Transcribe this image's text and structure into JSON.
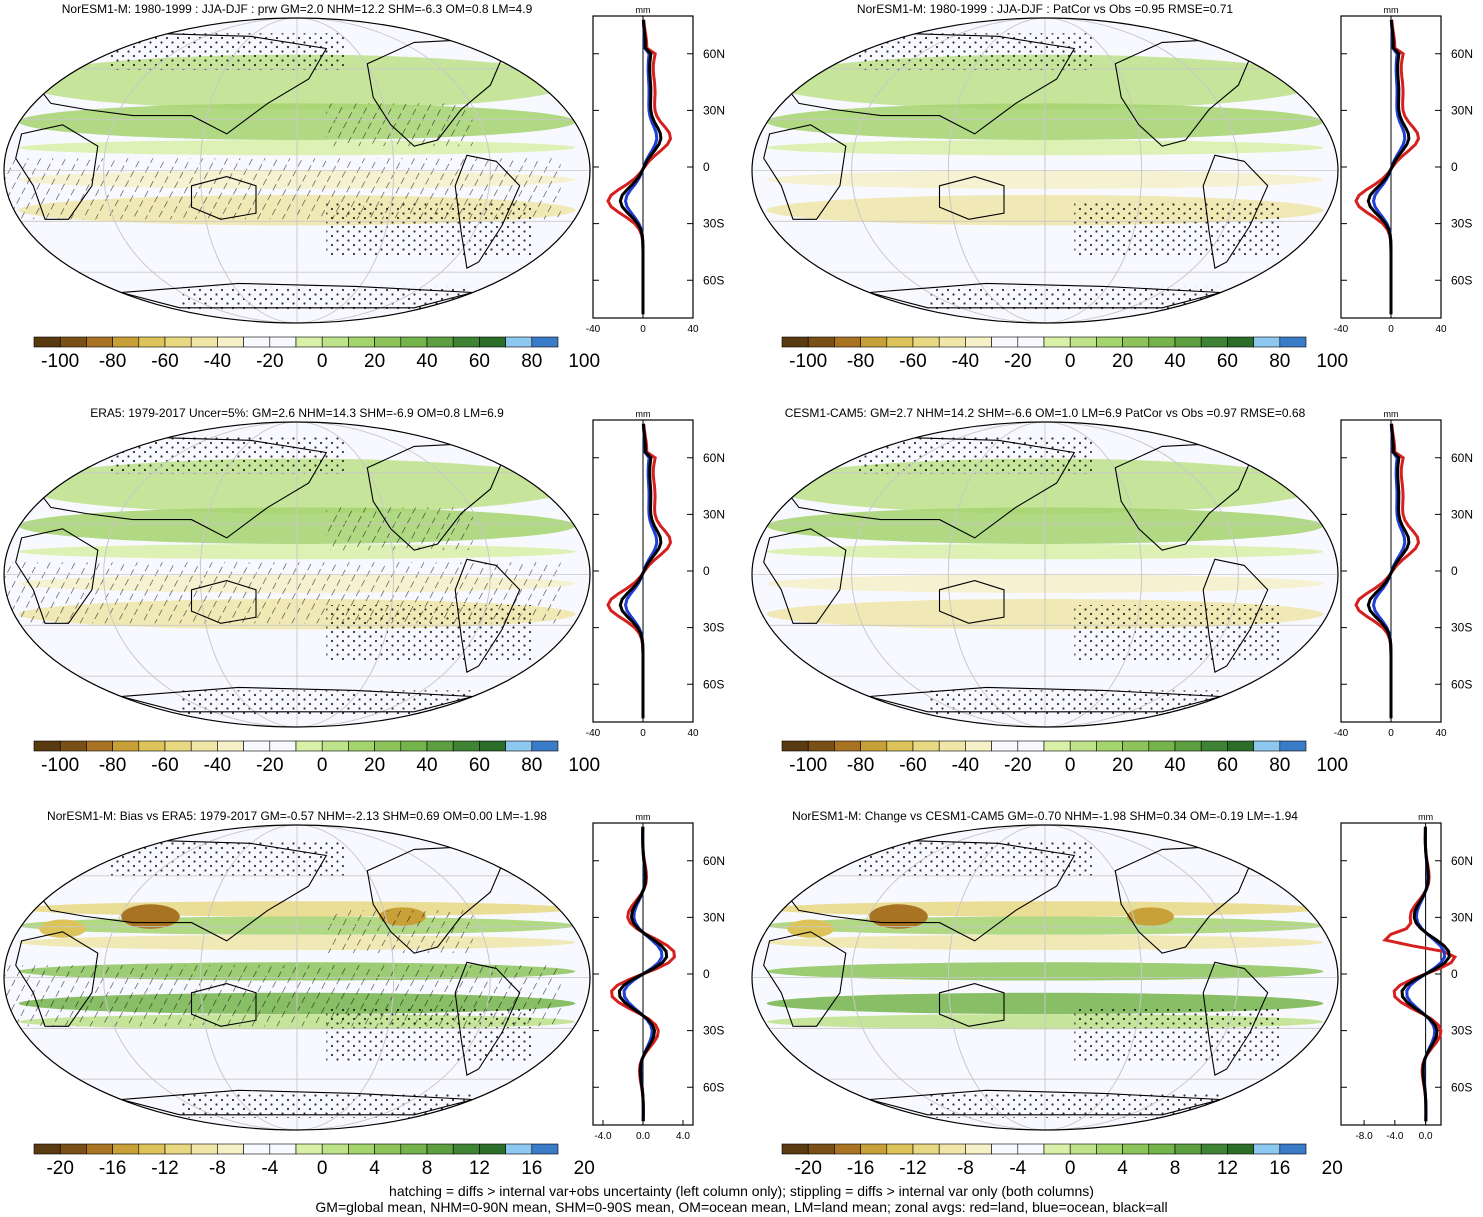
{
  "palette": {
    "main": [
      "#5a3a10",
      "#7a5018",
      "#a87424",
      "#c8a038",
      "#dcc45a",
      "#e8d882",
      "#f0e6a8",
      "#f6f0c8",
      "#f8f8ff",
      "#f8f8ff",
      "#d8f0a8",
      "#bde28a",
      "#a4d46e",
      "#8cc45a",
      "#74b44a",
      "#5c9e40",
      "#3e8434",
      "#2a6e2a",
      "#8cc8f0",
      "#3a7cc8"
    ],
    "land_line": "#d62020",
    "ocean_line": "#1f3fd6",
    "all_line": "#000000",
    "grid": "#c8c8c8",
    "map_bg": "#f8f8ff"
  },
  "colorbars": {
    "abs": {
      "labels": [
        "-100",
        "-80",
        "-60",
        "-40",
        "-20",
        "0",
        "20",
        "40",
        "60",
        "80",
        "100"
      ]
    },
    "diff": {
      "labels": [
        "-20",
        "-16",
        "-12",
        "-8",
        "-4",
        "0",
        "4",
        "8",
        "12",
        "16",
        "20"
      ]
    }
  },
  "chart_data": [
    {
      "type": "heatmap",
      "title": "NorESM1-M: 1980-1999 : JJA-DJF : prw GM=2.0 NHM=12.2 SHM=-6.3 OM=0.8 LM=4.9",
      "colorbar": "abs",
      "zonal": {
        "unit": "mm",
        "xticks": [
          "-40",
          "0",
          "40"
        ],
        "xlim": [
          -40,
          40
        ],
        "yticks": [
          "60N",
          "30N",
          "0",
          "30S",
          "60S"
        ],
        "ylim": [
          -80,
          80
        ]
      },
      "fields": {
        "land_jja_djf_peak_nh": 20,
        "land_sh_min": -28,
        "ocean_sh_min": -12
      }
    },
    {
      "type": "heatmap",
      "title": "NorESM1-M: 1980-1999 : JJA-DJF : PatCor vs Obs =0.95 RMSE=0.71",
      "colorbar": "abs",
      "zonal": {
        "unit": "mm",
        "xticks": [
          "-40",
          "0",
          "40"
        ],
        "xlim": [
          -40,
          40
        ],
        "yticks": [
          "60N",
          "30N",
          "0",
          "30S",
          "60S"
        ],
        "ylim": [
          -80,
          80
        ]
      }
    },
    {
      "type": "heatmap",
      "title": "ERA5: 1979-2017 Uncer=5%: GM=2.6 NHM=14.3 SHM=-6.9 OM=0.8 LM=6.9",
      "colorbar": "abs",
      "zonal": {
        "unit": "mm",
        "xticks": [
          "-40",
          "0",
          "40"
        ],
        "xlim": [
          -40,
          40
        ],
        "yticks": [
          "60N",
          "30N",
          "0",
          "30S",
          "60S"
        ],
        "ylim": [
          -80,
          80
        ]
      }
    },
    {
      "type": "heatmap",
      "title": "CESM1-CAM5: GM=2.7 NHM=14.2 SHM=-6.6 OM=1.0 LM=6.9 PatCor vs Obs =0.97 RMSE=0.68",
      "colorbar": "abs",
      "zonal": {
        "unit": "mm",
        "xticks": [
          "-40",
          "0",
          "40"
        ],
        "xlim": [
          -40,
          40
        ],
        "yticks": [
          "60N",
          "30N",
          "0",
          "30S",
          "60S"
        ],
        "ylim": [
          -80,
          80
        ]
      }
    },
    {
      "type": "heatmap",
      "title": "NorESM1-M: Bias vs ERA5: 1979-2017 GM=-0.57 NHM=-2.13 SHM=0.69 OM=0.00 LM=-1.98",
      "colorbar": "diff",
      "zonal": {
        "unit": "mm",
        "xticks": [
          "-4.0",
          "0.0",
          "4.0"
        ],
        "xlim": [
          -5,
          5
        ],
        "yticks": [
          "60N",
          "30N",
          "0",
          "30S",
          "60S"
        ],
        "ylim": [
          -80,
          80
        ]
      }
    },
    {
      "type": "heatmap",
      "title": "NorESM1-M: Change vs CESM1-CAM5 GM=-0.70 NHM=-1.98 SHM=0.34 OM=-0.19 LM=-1.94",
      "colorbar": "diff",
      "zonal": {
        "unit": "mm",
        "xticks": [
          "-8.0",
          "-4.0",
          "0.0"
        ],
        "xlim": [
          -11,
          2
        ],
        "yticks": [
          "60N",
          "30N",
          "0",
          "30S",
          "60S"
        ],
        "ylim": [
          -80,
          80
        ]
      }
    }
  ],
  "footer": {
    "line1": "hatching = diffs > internal var+obs uncertainty (left column only); stippling = diffs > internal var only (both columns)",
    "line2": "GM=global mean, NHM=0-90N mean, SHM=0-90S mean, OM=ocean mean, LM=land mean; zonal avgs: red=land, blue=ocean, black=all"
  }
}
